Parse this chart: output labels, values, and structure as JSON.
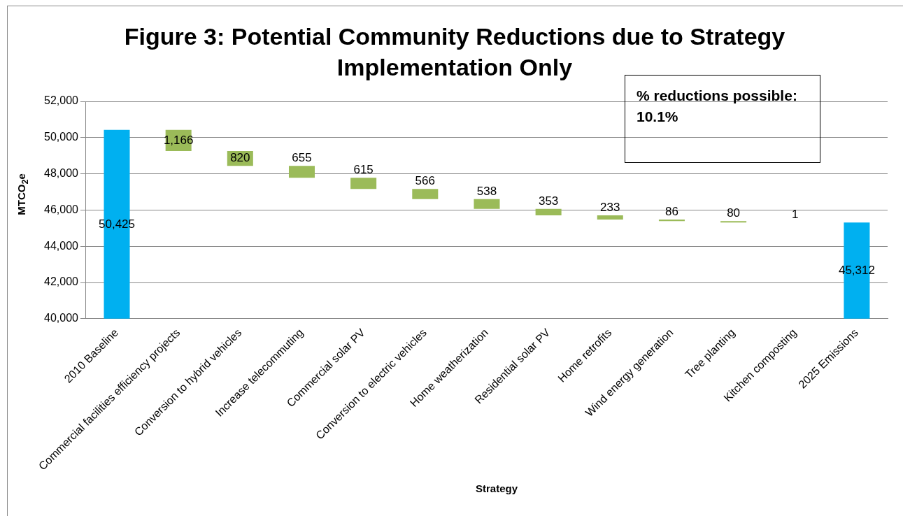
{
  "chart_data": {
    "type": "bar",
    "title": "Figure 3: Potential Community Reductions due to Strategy Implementation Only",
    "xlabel": "Strategy",
    "ylabel": "MTCO$_{2}$e",
    "categories": [
      "2010 Baseline",
      "Commercial facilities efficiency projects",
      "Conversion to hybrid vehicles",
      "Increase telecommuting",
      "Commercial solar PV",
      "Conversion to electric vehicles",
      "Home weatherization",
      "Residential solar PV",
      "Home retrofits",
      "Wind energy generation",
      "Tree planting",
      "Kitchen composting",
      "2025 Emissions"
    ],
    "values": [
      50425,
      1166,
      820,
      655,
      615,
      566,
      538,
      353,
      233,
      86,
      80,
      1,
      45312
    ],
    "base": [
      null,
      49259,
      48439,
      47784,
      47169,
      46603,
      46065,
      45712,
      45479,
      45393,
      45313,
      45312,
      null
    ],
    "colors": [
      "#00b0f0",
      "#9bbb59",
      "#9bbb59",
      "#9bbb59",
      "#9bbb59",
      "#9bbb59",
      "#9bbb59",
      "#9bbb59",
      "#9bbb59",
      "#9bbb59",
      "#9bbb59",
      "#9bbb59",
      "#00b0f0"
    ],
    "ylim": [
      40000,
      52000
    ],
    "yticks": [
      {
        "value": 40000,
        "label": "40,000"
      },
      {
        "value": 42000,
        "label": "42,000"
      },
      {
        "value": 44000,
        "label": "44,000"
      },
      {
        "value": 46000,
        "label": "46,000"
      },
      {
        "value": 48000,
        "label": "48,000"
      },
      {
        "value": 50000,
        "label": "50,000"
      },
      {
        "value": 52000,
        "label": "52,000"
      }
    ],
    "value_labels": [
      "50,425",
      "1,166",
      "820",
      "655",
      "615",
      "566",
      "538",
      "353",
      "233",
      "86",
      "80",
      "1",
      "45,312"
    ],
    "grid": "y",
    "legend": false,
    "annotations": [
      "% reductions possible: 10.1%"
    ]
  }
}
